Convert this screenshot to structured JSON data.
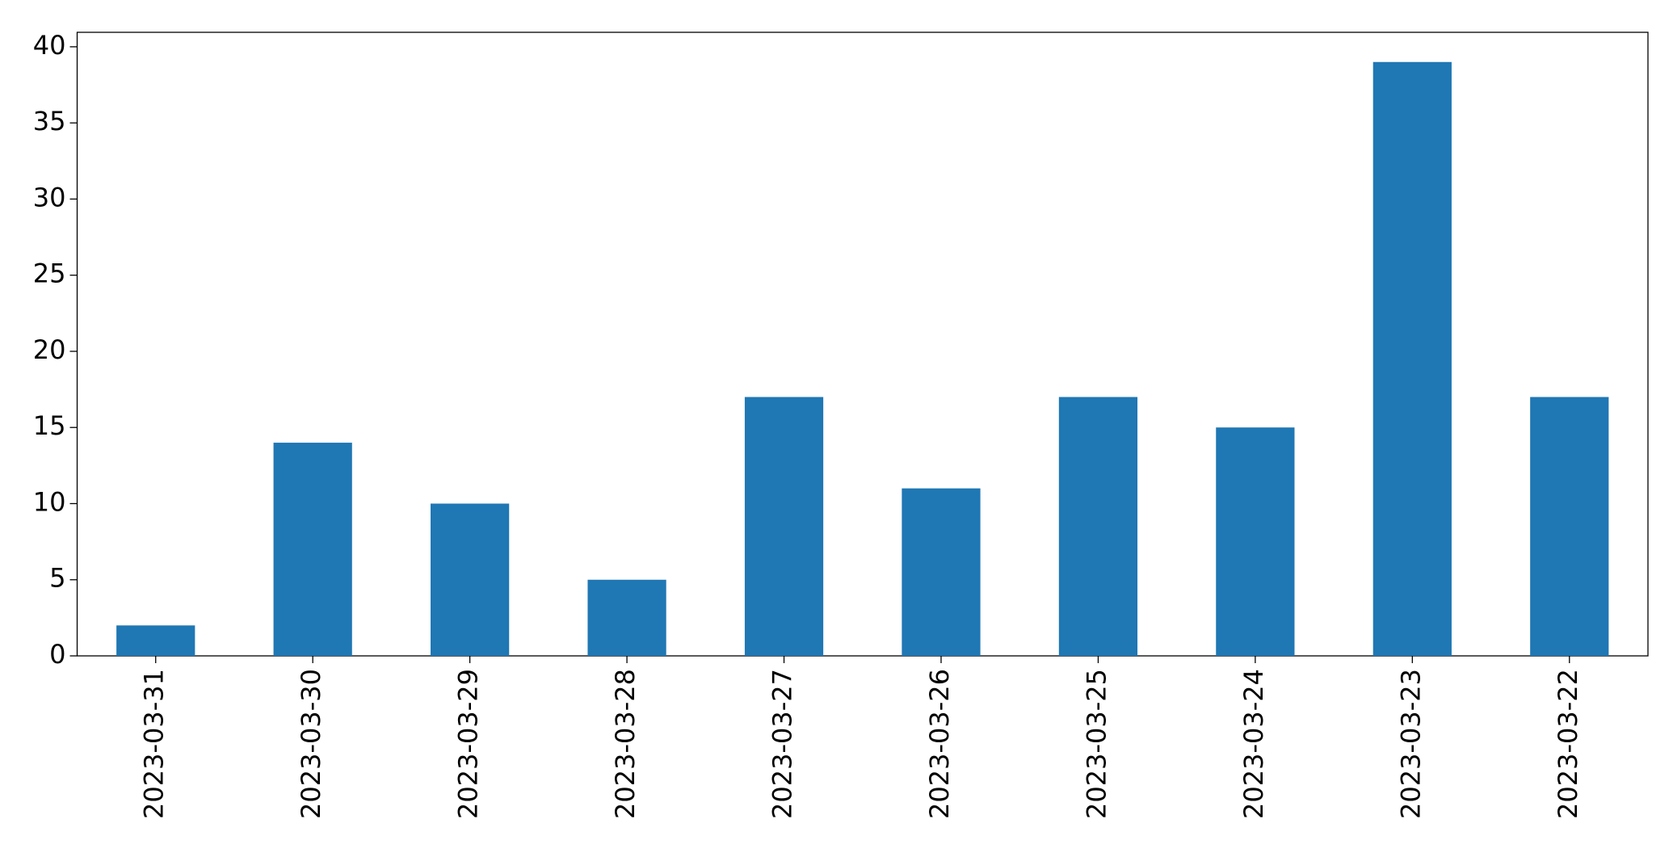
{
  "chart_data": {
    "type": "bar",
    "categories": [
      "2023-03-31",
      "2023-03-30",
      "2023-03-29",
      "2023-03-28",
      "2023-03-27",
      "2023-03-26",
      "2023-03-25",
      "2023-03-24",
      "2023-03-23",
      "2023-03-22"
    ],
    "values": [
      2,
      14,
      10,
      5,
      17,
      11,
      17,
      15,
      39,
      17
    ],
    "color": "#1f77b4",
    "ylim": [
      0,
      40.95
    ],
    "yticks": [
      0,
      5,
      10,
      15,
      20,
      25,
      30,
      35,
      40
    ],
    "grid": false
  }
}
